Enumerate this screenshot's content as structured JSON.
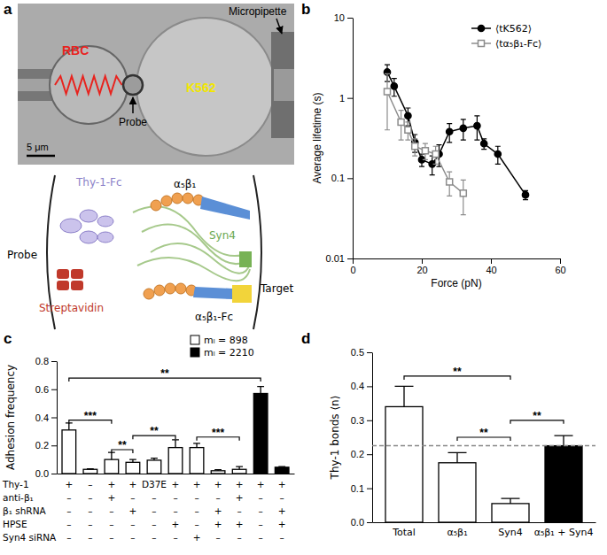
{
  "chart_data": [
    {
      "title": "b",
      "type": "line",
      "x_label": "Force (pN)",
      "y_label": "Average lifetime (s)",
      "xlim": [
        0,
        60
      ],
      "xticks": [
        0,
        20,
        40,
        60
      ],
      "ylim": [
        0.01,
        10
      ],
      "yticks": [
        0.01,
        0.1,
        1,
        10
      ],
      "log": "y",
      "legend": "upper right",
      "series": [
        {
          "name": "⟨tK562⟩",
          "color": "#000000",
          "marker": "circle",
          "line_style": "solid",
          "x": [
            10,
            12,
            16,
            18,
            20,
            23,
            25,
            28,
            32,
            36,
            38,
            42,
            50
          ],
          "values": [
            2.1,
            1.4,
            0.6,
            0.28,
            0.17,
            0.15,
            0.2,
            0.38,
            0.42,
            0.45,
            0.27,
            0.2,
            0.062
          ],
          "errors": [
            0.5,
            0.35,
            0.15,
            0.07,
            0.03,
            0.04,
            0.06,
            0.1,
            0.12,
            0.15,
            0.04,
            0.05,
            0.008
          ]
        },
        {
          "name": "⟨tα₅β₁-Fc⟩",
          "color": "#8c8c8c",
          "marker": "open-square",
          "line_style": "solid",
          "x": [
            10,
            14,
            16,
            18,
            21,
            24,
            28,
            32
          ],
          "values": [
            1.2,
            0.5,
            0.4,
            0.25,
            0.22,
            0.2,
            0.09,
            0.065
          ],
          "errors": [
            0.8,
            0.2,
            0.1,
            0.06,
            0.05,
            0.05,
            0.03,
            0.03
          ]
        }
      ]
    },
    {
      "title": "c",
      "type": "bar",
      "y_label": "Adhesion frequency",
      "ylim": [
        0,
        0.8
      ],
      "yticks": [
        {
          "value": 0,
          "label": "0.0"
        },
        {
          "value": 0.2,
          "label": "0.2"
        },
        {
          "value": 0.4,
          "label": "0.4"
        },
        {
          "value": 0.6,
          "label": "0.6"
        },
        {
          "value": 0.8,
          "label": "0.8"
        }
      ],
      "categories": [
        null,
        null,
        null,
        null,
        null,
        null,
        null,
        null,
        null,
        null,
        null
      ],
      "tick_labels": "y",
      "legend": "upper right",
      "series": [
        {
          "name": "mₗ = 898",
          "color": "#ffffff",
          "values": [
            0.31,
            0.03,
            0.1,
            0.08,
            0.095,
            0.185,
            0.185,
            0.02,
            0.03,
            null,
            null
          ],
          "errors": [
            0.05,
            0.003,
            0.05,
            0.02,
            0.015,
            0.055,
            0.03,
            0.008,
            0.02,
            null,
            null
          ]
        },
        {
          "name": "mₗ = 2210",
          "color": "#000000",
          "values": [
            null,
            null,
            null,
            null,
            null,
            null,
            null,
            null,
            null,
            0.57,
            0.045
          ],
          "errors": [
            null,
            null,
            null,
            null,
            null,
            null,
            null,
            null,
            null,
            0.05,
            0.005
          ]
        }
      ],
      "annotations": [
        {
          "text": "**",
          "from": 0,
          "to": 9,
          "y": 0.68
        },
        {
          "text": "***",
          "from": 0,
          "to": 2,
          "y": 0.38
        },
        {
          "text": "**",
          "from": 2,
          "to": 3,
          "y": 0.17
        },
        {
          "text": "**",
          "from": 3,
          "to": 5,
          "y": 0.27
        },
        {
          "text": "***",
          "from": 6,
          "to": 8,
          "y": 0.26
        }
      ],
      "table": {
        "rows": [
          {
            "label": "Thy-1",
            "cells": [
              "+",
              "–",
              "+",
              "+",
              "D37E",
              "+",
              "+",
              "+",
              "+",
              "+",
              "+"
            ]
          },
          {
            "label": "anti-β₁",
            "cells": [
              "–",
              "–",
              "+",
              "–",
              "–",
              "–",
              "–",
              "–",
              "+",
              "–",
              "–"
            ]
          },
          {
            "label": "β₁ shRNA",
            "cells": [
              "–",
              "–",
              "–",
              "+",
              "–",
              "–",
              "–",
              "+",
              "–",
              "–",
              "+"
            ]
          },
          {
            "label": "HPSE",
            "cells": [
              "–",
              "–",
              "–",
              "–",
              "–",
              "+",
              "–",
              "+",
              "+",
              "–",
              "+"
            ]
          },
          {
            "label": "Syn4 siRNA",
            "cells": [
              "–",
              "–",
              "–",
              "–",
              "–",
              "–",
              "+",
              "–",
              "–",
              "–",
              "–"
            ]
          }
        ]
      }
    },
    {
      "title": "d",
      "type": "bar",
      "y_label": "Thy-1 bonds ⟨n⟩",
      "ylim": [
        0,
        0.5
      ],
      "yticks": [
        {
          "value": 0,
          "label": "0.0"
        },
        {
          "value": 0.1,
          "label": "0.1"
        },
        {
          "value": 0.2,
          "label": "0.2"
        },
        {
          "value": 0.3,
          "label": "0.3"
        },
        {
          "value": 0.4,
          "label": "0.4"
        },
        {
          "value": 0.5,
          "label": "0.5"
        }
      ],
      "categories": [
        "Total",
        "α₅β₁",
        "Syn4",
        "α₅β₁ + Syn4"
      ],
      "values": [
        0.34,
        0.175,
        0.055,
        0.225
      ],
      "errors": [
        0.06,
        0.03,
        0.015,
        0.03
      ],
      "colors": [
        "#ffffff",
        "#ffffff",
        "#ffffff",
        "#000000"
      ],
      "reference_line": 0.225,
      "annotations": [
        {
          "text": "**",
          "from": 0,
          "to": 2,
          "y": 0.43
        },
        {
          "text": "**",
          "from": 1,
          "to": 2,
          "y": 0.25
        },
        {
          "text": "**",
          "from": 2,
          "to": 3,
          "y": 0.3
        }
      ]
    }
  ],
  "panel_a": {
    "title": "a",
    "photo_labels": [
      {
        "text": "RBC",
        "color": "#e8231e"
      },
      {
        "text": "Probe",
        "color": "#000000"
      },
      {
        "text": "Micropipette",
        "color": "#000000"
      },
      {
        "text": "K562",
        "color": "#f2e600"
      },
      {
        "text": "5 μm",
        "color": "#000000"
      }
    ],
    "diagram_labels": [
      {
        "text": "Thy-1-Fc",
        "color": "#8b7fc8"
      },
      {
        "text": "α₅β₁",
        "color": "#000000"
      },
      {
        "text": "Probe",
        "color": "#000000"
      },
      {
        "text": "Syn4",
        "color": "#6aa84f"
      },
      {
        "text": "Streptavidin",
        "color": "#c0392b"
      },
      {
        "text": "Target",
        "color": "#000000"
      },
      {
        "text": "α₅β₁-Fc",
        "color": "#000000"
      }
    ]
  }
}
